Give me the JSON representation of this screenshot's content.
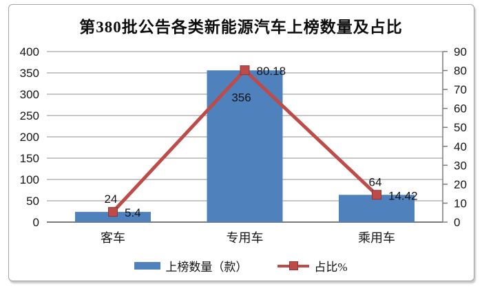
{
  "chart_data": {
    "type": "combo-bar-line",
    "title": "第380批公告各类新能源汽车上榜数量及占比",
    "categories": [
      "客车",
      "专用车",
      "乘用车"
    ],
    "series": [
      {
        "name": "上榜数量（款）",
        "type": "bar",
        "axis": "left",
        "color": "#4F81BD",
        "values": [
          24,
          356,
          64
        ],
        "labels": [
          "24",
          "356",
          "64"
        ]
      },
      {
        "name": "占比%",
        "type": "line",
        "axis": "right",
        "color": "#BE4B48",
        "marker": "square",
        "marker_border_color": "#8E3634",
        "values": [
          5.4,
          80.18,
          14.42
        ],
        "labels": [
          "5.4",
          "80.18",
          "14.42"
        ]
      }
    ],
    "left_axis": {
      "min": 0,
      "max": 400,
      "step": 50,
      "tick_values": [
        0,
        50,
        100,
        150,
        200,
        250,
        300,
        350,
        400
      ],
      "tick_labels": [
        "0",
        "50",
        "100",
        "150",
        "200",
        "250",
        "300",
        "350",
        "400"
      ]
    },
    "right_axis": {
      "min": 0,
      "max": 90,
      "step": 10,
      "tick_values": [
        0,
        10,
        20,
        30,
        40,
        50,
        60,
        70,
        80,
        90
      ],
      "tick_labels": [
        "0",
        "10",
        "20",
        "30",
        "40",
        "50",
        "60",
        "70",
        "80",
        "90"
      ]
    },
    "grid": true,
    "legend_position": "bottom",
    "grid_color": "#8f8f8f",
    "axis_color": "#7a7a7a",
    "text_color": "#141414"
  }
}
